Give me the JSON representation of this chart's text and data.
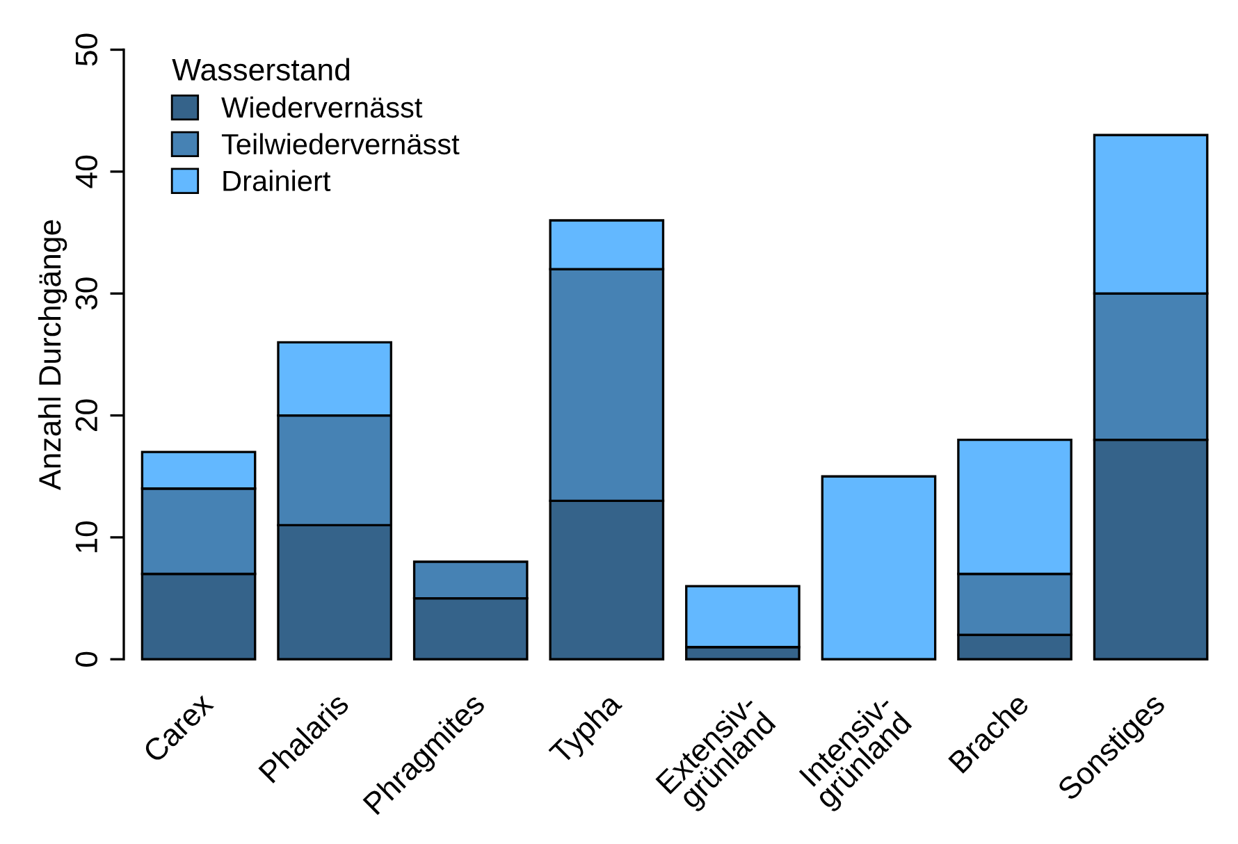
{
  "chart_data": {
    "type": "bar",
    "stacked": true,
    "ylabel": "Anzahl Durchgänge",
    "legend_title": "Wasserstand",
    "legend": "top left",
    "categories": [
      "Carex",
      "Phalaris",
      "Phragmites",
      "Typha",
      "Extensiv-\ngrünland",
      "Intensiv-\ngrünland",
      "Brache",
      "Sonstiges"
    ],
    "series": [
      {
        "name": "Wiedervernässt",
        "color": "#35638a",
        "values": [
          7,
          11,
          5,
          13,
          1,
          0,
          2,
          18
        ]
      },
      {
        "name": "Teilwiedervernässt",
        "color": "#4682b4",
        "values": [
          7,
          9,
          3,
          19,
          0,
          0,
          5,
          12
        ]
      },
      {
        "name": "Drainiert",
        "color": "#63b8ff",
        "values": [
          3,
          6,
          0,
          4,
          5,
          15,
          11,
          13
        ]
      }
    ],
    "ylim": [
      0,
      50
    ],
    "yticks": [
      0,
      10,
      20,
      30,
      40,
      50
    ],
    "grid": false
  }
}
